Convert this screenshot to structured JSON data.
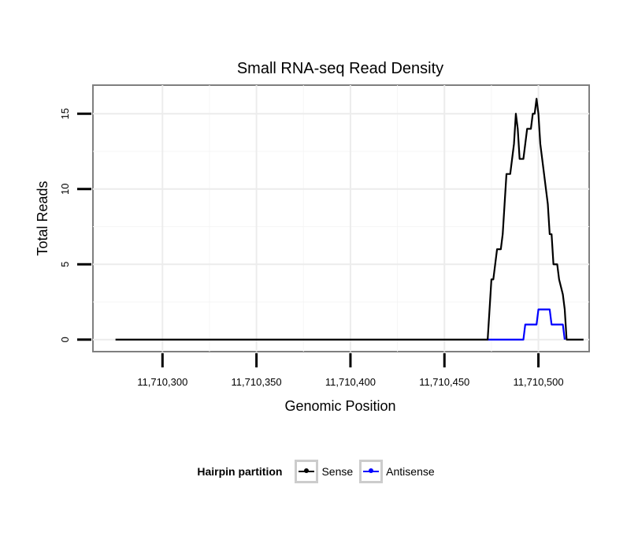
{
  "chart_data": {
    "type": "line",
    "title": "Small RNA-seq Read Density",
    "xlabel": "Genomic Position",
    "ylabel": "Total Reads",
    "xlim": [
      11710263,
      11710527
    ],
    "ylim": [
      -0.8,
      16.9
    ],
    "x_ticks": [
      11710300,
      11710350,
      11710400,
      11710450,
      11710500
    ],
    "x_tick_labels": [
      "11,710,300",
      "11,710,350",
      "11,710,400",
      "11,710,450",
      "11,710,500"
    ],
    "y_ticks": [
      0,
      5,
      10,
      15
    ],
    "y_tick_labels": [
      "0",
      "5",
      "10",
      "15"
    ],
    "grid": true,
    "legend": {
      "title": "Hairpin partition",
      "position": "bottom"
    },
    "series": [
      {
        "name": "Sense",
        "color": "#000000",
        "points": [
          [
            11710275,
            0
          ],
          [
            11710473,
            0
          ],
          [
            11710475,
            4
          ],
          [
            11710476,
            4
          ],
          [
            11710477,
            5
          ],
          [
            11710478,
            6
          ],
          [
            11710480,
            6
          ],
          [
            11710481,
            7
          ],
          [
            11710482,
            9
          ],
          [
            11710483,
            11
          ],
          [
            11710485,
            11
          ],
          [
            11710486,
            12
          ],
          [
            11710487,
            13
          ],
          [
            11710488,
            15
          ],
          [
            11710489,
            14
          ],
          [
            11710490,
            12
          ],
          [
            11710492,
            12
          ],
          [
            11710493,
            13
          ],
          [
            11710494,
            14
          ],
          [
            11710496,
            14
          ],
          [
            11710497,
            15
          ],
          [
            11710498,
            15
          ],
          [
            11710499,
            16
          ],
          [
            11710500,
            15
          ],
          [
            11710501,
            13
          ],
          [
            11710502,
            12
          ],
          [
            11710503,
            11
          ],
          [
            11710504,
            10
          ],
          [
            11710505,
            9
          ],
          [
            11710506,
            7
          ],
          [
            11710507,
            7
          ],
          [
            11710508,
            5
          ],
          [
            11710510,
            5
          ],
          [
            11710511,
            4
          ],
          [
            11710512,
            3.5
          ],
          [
            11710513,
            3
          ],
          [
            11710514,
            2
          ],
          [
            11710515,
            0
          ],
          [
            11710524,
            0
          ]
        ]
      },
      {
        "name": "Antisense",
        "color": "#0000ff",
        "points": [
          [
            11710473,
            0
          ],
          [
            11710492,
            0
          ],
          [
            11710493,
            1
          ],
          [
            11710499,
            1
          ],
          [
            11710500,
            2
          ],
          [
            11710506,
            2
          ],
          [
            11710507,
            1
          ],
          [
            11710513,
            1
          ],
          [
            11710514,
            0
          ]
        ]
      }
    ]
  }
}
